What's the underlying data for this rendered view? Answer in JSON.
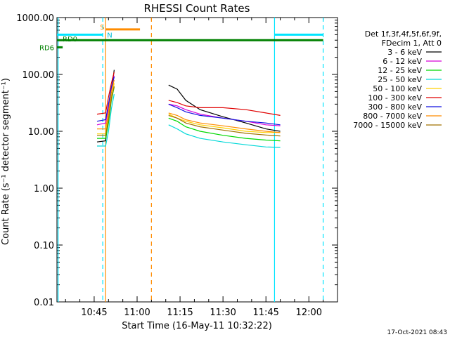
{
  "chart_data": {
    "type": "line",
    "title": "RHESSI Count Rates",
    "xlabel": "Start Time (16-May-11 10:32:22)",
    "ylabel": "Count Rate (s⁻¹ detector segment⁻¹)",
    "xscale": "time (minutes)",
    "yscale": "log",
    "xlim": [
      "10:32",
      "12:10"
    ],
    "ylim": [
      0.01,
      1000
    ],
    "x_ticks": [
      "10:45",
      "11:00",
      "11:15",
      "11:30",
      "11:45",
      "12:00"
    ],
    "y_ticks": [
      "0.01",
      "0.10",
      "1.00",
      "10.00",
      "100.00",
      "1000.00"
    ],
    "grid": false,
    "legend": {
      "position": "right",
      "header": [
        "Det 1f,3f,4f,5f,6f,9f,",
        "FDecim 1, Att 0"
      ]
    },
    "series": [
      {
        "name": "3 - 6 keV",
        "color": "#000000",
        "points": [
          [
            "10:46",
            6.5
          ],
          [
            "10:49",
            6.8
          ],
          [
            "10:50",
            18
          ],
          [
            "10:51",
            50
          ],
          [
            "10:52",
            120
          ],
          [
            "11:11",
            65
          ],
          [
            "11:14",
            55
          ],
          [
            "11:17",
            35
          ],
          [
            "11:22",
            24
          ],
          [
            "11:30",
            18
          ],
          [
            "11:38",
            14
          ],
          [
            "11:45",
            11
          ],
          [
            "11:50",
            10
          ]
        ]
      },
      {
        "name": "6 - 12 keV",
        "color": "#d800d8",
        "points": [
          [
            "10:46",
            13
          ],
          [
            "10:49",
            14
          ],
          [
            "10:50",
            26
          ],
          [
            "10:51",
            55
          ],
          [
            "10:52",
            95
          ],
          [
            "11:11",
            30
          ],
          [
            "11:14",
            28
          ],
          [
            "11:17",
            24
          ],
          [
            "11:22",
            20
          ],
          [
            "11:30",
            17
          ],
          [
            "11:38",
            15
          ],
          [
            "11:45",
            13
          ],
          [
            "11:50",
            12.5
          ]
        ]
      },
      {
        "name": "12 - 25 keV",
        "color": "#00d800",
        "points": [
          [
            "10:46",
            7.5
          ],
          [
            "10:49",
            7.5
          ],
          [
            "10:50",
            14
          ],
          [
            "10:51",
            35
          ],
          [
            "10:52",
            60
          ],
          [
            "11:11",
            17
          ],
          [
            "11:14",
            15
          ],
          [
            "11:17",
            12
          ],
          [
            "11:22",
            10
          ],
          [
            "11:30",
            8.5
          ],
          [
            "11:38",
            7.5
          ],
          [
            "11:45",
            7
          ],
          [
            "11:50",
            6.8
          ]
        ]
      },
      {
        "name": "25 - 50 keV",
        "color": "#00d8d8",
        "points": [
          [
            "10:46",
            5.5
          ],
          [
            "10:49",
            5.5
          ],
          [
            "10:50",
            10
          ],
          [
            "10:51",
            25
          ],
          [
            "10:52",
            45
          ],
          [
            "11:11",
            13
          ],
          [
            "11:14",
            11
          ],
          [
            "11:17",
            9
          ],
          [
            "11:22",
            7.5
          ],
          [
            "11:30",
            6.5
          ],
          [
            "11:38",
            5.8
          ],
          [
            "11:45",
            5.3
          ],
          [
            "11:50",
            5.2
          ]
        ]
      },
      {
        "name": "50 - 100 keV",
        "color": "#ffd000",
        "points": [
          [
            "10:46",
            9
          ],
          [
            "10:49",
            9
          ],
          [
            "10:50",
            18
          ],
          [
            "10:51",
            40
          ],
          [
            "10:52",
            70
          ],
          [
            "11:11",
            20
          ],
          [
            "11:14",
            17
          ],
          [
            "11:17",
            15
          ],
          [
            "11:22",
            13
          ],
          [
            "11:30",
            11.5
          ],
          [
            "11:38",
            10
          ],
          [
            "11:45",
            9.5
          ],
          [
            "11:50",
            9.5
          ]
        ]
      },
      {
        "name": "100 - 300 keV",
        "color": "#e00000",
        "points": [
          [
            "10:46",
            20
          ],
          [
            "10:49",
            21
          ],
          [
            "10:50",
            40
          ],
          [
            "10:51",
            70
          ],
          [
            "10:52",
            110
          ],
          [
            "11:11",
            35
          ],
          [
            "11:14",
            32
          ],
          [
            "11:17",
            28
          ],
          [
            "11:22",
            26
          ],
          [
            "11:30",
            26
          ],
          [
            "11:38",
            24
          ],
          [
            "11:45",
            21
          ],
          [
            "11:50",
            19
          ]
        ]
      },
      {
        "name": "300 - 800 keV",
        "color": "#1010e0",
        "points": [
          [
            "10:46",
            15
          ],
          [
            "10:49",
            16
          ],
          [
            "10:50",
            30
          ],
          [
            "10:51",
            60
          ],
          [
            "10:52",
            90
          ],
          [
            "11:11",
            30
          ],
          [
            "11:14",
            26
          ],
          [
            "11:17",
            22
          ],
          [
            "11:22",
            19
          ],
          [
            "11:30",
            17
          ],
          [
            "11:38",
            15
          ],
          [
            "11:45",
            14
          ],
          [
            "11:50",
            13
          ]
        ]
      },
      {
        "name": "800 - 7000 keV",
        "color": "#ff8c00",
        "points": [
          [
            "10:46",
            11
          ],
          [
            "10:49",
            11
          ],
          [
            "10:50",
            22
          ],
          [
            "10:51",
            50
          ],
          [
            "10:52",
            80
          ],
          [
            "11:11",
            21
          ],
          [
            "11:14",
            19
          ],
          [
            "11:17",
            16
          ],
          [
            "11:22",
            14
          ],
          [
            "11:30",
            12.5
          ],
          [
            "11:38",
            11
          ],
          [
            "11:45",
            10
          ],
          [
            "11:50",
            9.5
          ]
        ]
      },
      {
        "name": "7000 - 15000 keV",
        "color": "#a07000",
        "points": [
          [
            "10:46",
            8.5
          ],
          [
            "10:49",
            8.5
          ],
          [
            "10:50",
            16
          ],
          [
            "10:51",
            38
          ],
          [
            "10:52",
            62
          ],
          [
            "11:11",
            19
          ],
          [
            "11:14",
            17
          ],
          [
            "11:17",
            14
          ],
          [
            "11:22",
            12
          ],
          [
            "11:30",
            10.5
          ],
          [
            "11:38",
            9.2
          ],
          [
            "11:45",
            8.6
          ],
          [
            "11:50",
            8.3
          ]
        ]
      }
    ],
    "state_bars": [
      {
        "label": "",
        "color": "#00e5ff",
        "ranges": [
          [
            "10:32",
            "10:48"
          ],
          [
            "11:48",
            "12:05"
          ]
        ],
        "level": 500
      },
      {
        "label": "S",
        "color": "#ff8c00",
        "ranges": [
          [
            "10:49",
            "11:01"
          ]
        ],
        "level": 620
      },
      {
        "label": "RD0",
        "color": "#008000",
        "ranges": [
          [
            "10:32",
            "12:05"
          ]
        ],
        "level": 400
      },
      {
        "label": "RD6",
        "color": "#008000",
        "ranges": [
          [
            "10:32",
            "10:34"
          ]
        ],
        "level": 300
      }
    ],
    "state_labels": {
      "n": "N"
    },
    "markers": [
      {
        "time": "10:32.4",
        "color": "#00e5ff",
        "style": "solid"
      },
      {
        "time": "10:48",
        "color": "#00e5ff",
        "style": "dashed"
      },
      {
        "time": "10:49",
        "color": "#ff8c00",
        "style": "solid"
      },
      {
        "time": "11:05",
        "color": "#ff8c00",
        "style": "dashed"
      },
      {
        "time": "11:48",
        "color": "#00e5ff",
        "style": "solid"
      },
      {
        "time": "12:05",
        "color": "#00e5ff",
        "style": "dashed"
      }
    ]
  },
  "footer": {
    "timestamp": "17-Oct-2021 08:43"
  }
}
